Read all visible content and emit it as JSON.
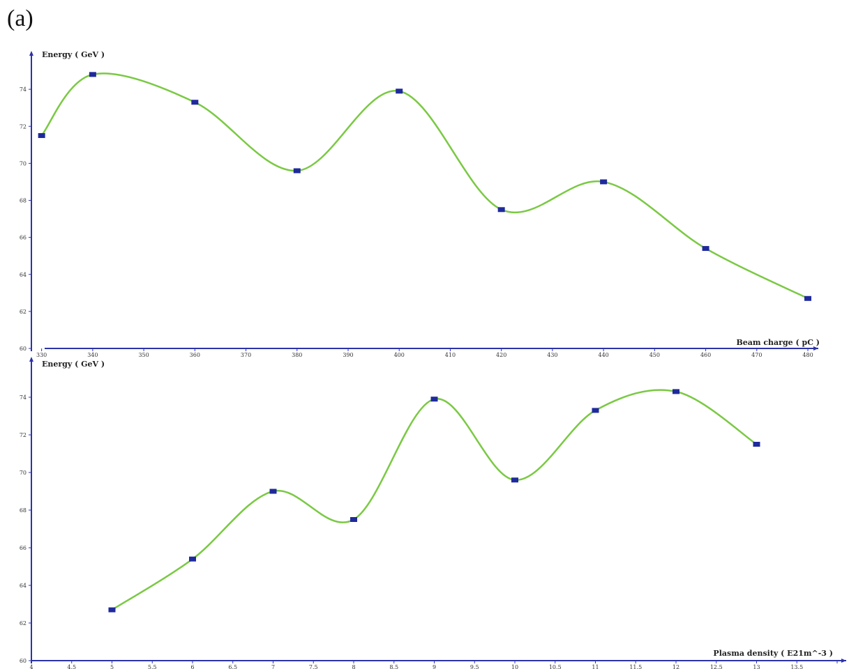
{
  "panel_label": "(a)",
  "chart_data": [
    {
      "type": "line",
      "title": "",
      "xlabel": "Beam charge ( pC )",
      "ylabel": "Energy ( GeV )",
      "xlim": [
        328,
        483
      ],
      "ylim": [
        60,
        76
      ],
      "xticks": [
        330,
        340,
        350,
        360,
        370,
        380,
        390,
        400,
        410,
        420,
        430,
        440,
        450,
        460,
        470,
        480
      ],
      "yticks": [
        60,
        62,
        64,
        66,
        68,
        70,
        72,
        74
      ],
      "grid": false,
      "series": [
        {
          "x": [
            330,
            340,
            360,
            380,
            400,
            420,
            440,
            460,
            480
          ],
          "y": [
            71.5,
            74.8,
            73.3,
            69.6,
            73.9,
            67.5,
            69.0,
            65.4,
            62.7
          ]
        }
      ]
    },
    {
      "type": "line",
      "title": "",
      "xlabel": "Plasma density ( E21m^-3 )",
      "ylabel": "Energy ( GeV )",
      "xlim": [
        4,
        14
      ],
      "ylim": [
        60,
        76
      ],
      "xticks": [
        4,
        4.5,
        5,
        5.5,
        6,
        6.5,
        7,
        7.5,
        8,
        8.5,
        9,
        9.5,
        10,
        10.5,
        11,
        11.5,
        12,
        12.5,
        13,
        13.5,
        14
      ],
      "xtick_labels": [
        "4",
        "4.5",
        "5",
        "5.5",
        "6",
        "6.5",
        "7",
        "7.5",
        "8",
        "8.5",
        "9",
        "9.5",
        "10",
        "10.5",
        "11",
        "11.5",
        "12",
        "12.5",
        "13",
        "13.5",
        ""
      ],
      "yticks": [
        60,
        62,
        64,
        66,
        68,
        70,
        72,
        74
      ],
      "grid": false,
      "series": [
        {
          "x": [
            5,
            6,
            7,
            8,
            9,
            10,
            11,
            12,
            13
          ],
          "y": [
            62.7,
            65.4,
            69.0,
            67.5,
            73.9,
            69.6,
            73.3,
            74.3,
            71.5
          ]
        }
      ]
    }
  ]
}
